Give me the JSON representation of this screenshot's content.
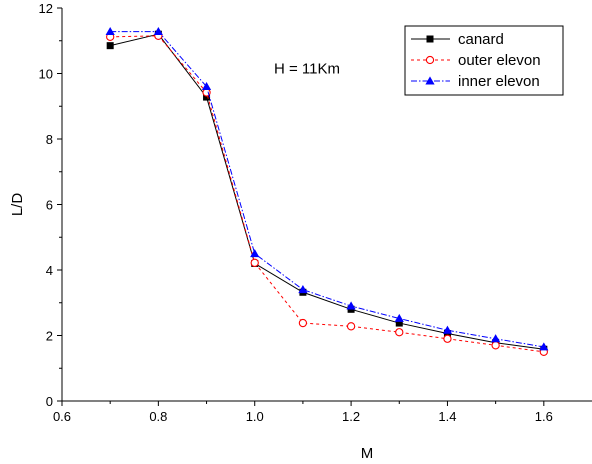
{
  "chart_data": {
    "type": "line",
    "title": "",
    "xlabel": "M",
    "ylabel": "L/D",
    "xlim": [
      0.6,
      1.7
    ],
    "ylim": [
      0,
      12
    ],
    "x_ticks": [
      0.6,
      0.8,
      1.0,
      1.2,
      1.4,
      1.6
    ],
    "x_tick_labels": [
      "0.6",
      "0.8",
      "1.0",
      "1.2",
      "1.4",
      "1.6"
    ],
    "y_ticks": [
      0,
      2,
      4,
      6,
      8,
      10,
      12
    ],
    "y_tick_labels": [
      "0",
      "2",
      "4",
      "6",
      "8",
      "10",
      "12"
    ],
    "grid": false,
    "legend_position": "top-right",
    "annotations": [
      {
        "text": "H = 11Km",
        "x": 1.04,
        "y": 10.0
      }
    ],
    "x": [
      0.7,
      0.8,
      0.9,
      1.0,
      1.1,
      1.2,
      1.3,
      1.4,
      1.5,
      1.6
    ],
    "series": [
      {
        "name": "canard",
        "color": "#000000",
        "dash": "solid",
        "marker": "square-filled",
        "values": [
          10.85,
          11.2,
          9.28,
          4.2,
          3.32,
          2.8,
          2.38,
          2.06,
          1.78,
          1.58
        ]
      },
      {
        "name": "outer elevon",
        "color": "#ff0000",
        "dash": "dotted",
        "marker": "circle-open",
        "values": [
          11.12,
          11.15,
          9.42,
          4.22,
          2.38,
          2.28,
          2.1,
          1.9,
          1.7,
          1.5
        ]
      },
      {
        "name": "inner elevon",
        "color": "#0000ff",
        "dash": "dashdot",
        "marker": "triangle-filled",
        "values": [
          11.28,
          11.28,
          9.6,
          4.5,
          3.4,
          2.9,
          2.52,
          2.16,
          1.9,
          1.65
        ]
      }
    ]
  }
}
